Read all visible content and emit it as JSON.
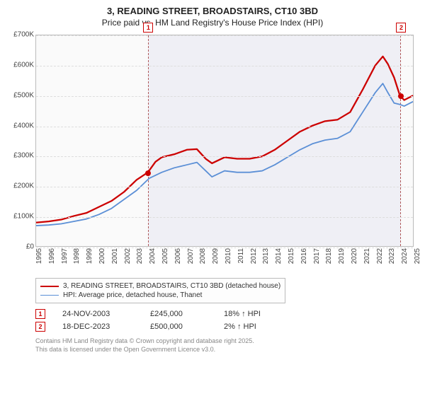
{
  "title": {
    "line1": "3, READING STREET, BROADSTAIRS, CT10 3BD",
    "line2": "Price paid vs. HM Land Registry's House Price Index (HPI)",
    "fontsize_line1": 13,
    "fontsize_line2": 12,
    "color": "#222222"
  },
  "chart": {
    "type": "line",
    "background_color": "#fafafa",
    "border_color": "#bbbbbb",
    "grid_color": "#dddddd",
    "shade_color": "rgba(229,229,240,0.55)",
    "shade_border": "#b05a5a",
    "x_years": [
      1995,
      1996,
      1997,
      1998,
      1999,
      2000,
      2001,
      2002,
      2003,
      2004,
      2005,
      2006,
      2007,
      2008,
      2009,
      2010,
      2011,
      2012,
      2013,
      2014,
      2015,
      2016,
      2017,
      2018,
      2019,
      2020,
      2021,
      2022,
      2023,
      2024,
      2025
    ],
    "ylim": [
      0,
      700000
    ],
    "ytick_step": 100000,
    "ytick_labels": [
      "£0",
      "£100K",
      "£200K",
      "£300K",
      "£400K",
      "£500K",
      "£600K",
      "£700K"
    ],
    "shade_span_years": [
      2003.9,
      2023.96
    ],
    "series": [
      {
        "name": "3, READING STREET, BROADSTAIRS, CT10 3BD (detached house)",
        "color": "#cc0000",
        "line_width": 2.3,
        "x": [
          1995,
          1996,
          1997,
          1998,
          1999,
          2000,
          2001,
          2002,
          2003,
          2003.9,
          2004.5,
          2005,
          2006,
          2007,
          2007.8,
          2008.5,
          2009,
          2010,
          2011,
          2012,
          2013,
          2014,
          2015,
          2016,
          2017,
          2018,
          2019,
          2020,
          2021,
          2022,
          2022.6,
          2023,
          2023.5,
          2023.96,
          2024.3,
          2025
        ],
        "y": [
          78000,
          82000,
          88000,
          100000,
          110000,
          130000,
          150000,
          180000,
          220000,
          245000,
          280000,
          295000,
          305000,
          320000,
          322000,
          290000,
          275000,
          295000,
          290000,
          290000,
          298000,
          320000,
          350000,
          380000,
          400000,
          415000,
          420000,
          445000,
          520000,
          600000,
          630000,
          605000,
          560000,
          500000,
          485000,
          500000
        ]
      },
      {
        "name": "HPI: Average price, detached house, Thanet",
        "color": "#5b8fd6",
        "line_width": 1.8,
        "x": [
          1995,
          1996,
          1997,
          1998,
          1999,
          2000,
          2001,
          2002,
          2003,
          2004,
          2005,
          2006,
          2007,
          2007.8,
          2008.5,
          2009,
          2010,
          2011,
          2012,
          2013,
          2014,
          2015,
          2016,
          2017,
          2018,
          2019,
          2020,
          2021,
          2022,
          2022.6,
          2023,
          2023.5,
          2024,
          2024.3,
          2025
        ],
        "y": [
          68000,
          70000,
          74000,
          82000,
          90000,
          105000,
          125000,
          155000,
          185000,
          225000,
          245000,
          260000,
          270000,
          278000,
          250000,
          230000,
          250000,
          245000,
          245000,
          250000,
          270000,
          295000,
          320000,
          340000,
          352000,
          358000,
          380000,
          445000,
          510000,
          540000,
          510000,
          475000,
          470000,
          465000,
          480000
        ]
      }
    ],
    "sale_markers": [
      {
        "n": 1,
        "year": 2003.9,
        "price": 245000
      },
      {
        "n": 2,
        "year": 2023.96,
        "price": 500000
      }
    ]
  },
  "legend": {
    "items": [
      {
        "label": "3, READING STREET, BROADSTAIRS, CT10 3BD (detached house)",
        "color": "#cc0000",
        "width": 2.3
      },
      {
        "label": "HPI: Average price, detached house, Thanet",
        "color": "#5b8fd6",
        "width": 1.8
      }
    ],
    "border_color": "#bbbbbb",
    "fontsize": 10
  },
  "sales_table": [
    {
      "n": "1",
      "date": "24-NOV-2003",
      "price": "£245,000",
      "delta": "18% ↑ HPI"
    },
    {
      "n": "2",
      "date": "18-DEC-2023",
      "price": "£500,000",
      "delta": "2% ↑ HPI"
    }
  ],
  "footer": {
    "line1": "Contains HM Land Registry data © Crown copyright and database right 2025.",
    "line2": "This data is licensed under the Open Government Licence v3.0.",
    "color": "#888888",
    "fontsize": 9
  }
}
